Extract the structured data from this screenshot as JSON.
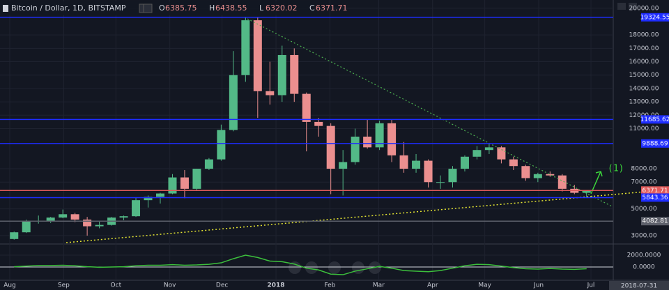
{
  "chart_data": {
    "type": "candlestick",
    "title": "Bitcoin / Dollar, 1D, BITSTAMP",
    "ohlc_header": {
      "labels": [
        "O",
        "H",
        "L",
        "C"
      ],
      "values": [
        6385.75,
        6438.55,
        6320.02,
        6371.71
      ]
    },
    "x": [
      "2017-07-31",
      "2017-08-07",
      "2017-08-14",
      "2017-08-21",
      "2017-08-28",
      "2017-09-04",
      "2017-09-11",
      "2017-09-18",
      "2017-09-25",
      "2017-10-02",
      "2017-10-09",
      "2017-10-16",
      "2017-10-23",
      "2017-10-30",
      "2017-11-06",
      "2017-11-13",
      "2017-11-20",
      "2017-11-27",
      "2017-12-04",
      "2017-12-11",
      "2017-12-18",
      "2017-12-25",
      "2018-01-01",
      "2018-01-08",
      "2018-01-15",
      "2018-01-22",
      "2018-01-29",
      "2018-02-05",
      "2018-02-12",
      "2018-02-19",
      "2018-02-26",
      "2018-03-05",
      "2018-03-12",
      "2018-03-19",
      "2018-03-26",
      "2018-04-02",
      "2018-04-09",
      "2018-04-16",
      "2018-04-23",
      "2018-04-30",
      "2018-05-07",
      "2018-05-14",
      "2018-05-21",
      "2018-05-28",
      "2018-06-04",
      "2018-06-11",
      "2018-06-18",
      "2018-06-25"
    ],
    "open": [
      2750,
      3250,
      4100,
      4100,
      4350,
      4600,
      4200,
      3700,
      3800,
      4350,
      4450,
      5650,
      5900,
      6150,
      7350,
      6500,
      8000,
      8700,
      10900,
      15000,
      19100,
      13800,
      13500,
      16500,
      13600,
      11500,
      11200,
      8000,
      8500,
      10400,
      9600,
      11400,
      9000,
      8000,
      8600,
      7000,
      7000,
      8000,
      8900,
      9400,
      9600,
      8700,
      8200,
      7300,
      7600,
      7500,
      6500,
      6200
    ],
    "high": [
      3300,
      4200,
      4500,
      4400,
      4950,
      4700,
      4400,
      4100,
      4400,
      4500,
      5850,
      6000,
      6200,
      7600,
      7900,
      8000,
      8800,
      11300,
      16800,
      19300,
      19324,
      16000,
      17200,
      17000,
      13700,
      11800,
      11400,
      9400,
      11000,
      11700,
      11600,
      11700,
      10000,
      9100,
      8700,
      7500,
      8200,
      9000,
      9700,
      9888,
      9700,
      8900,
      8300,
      7700,
      7800,
      7600,
      6800,
      6400
    ],
    "low": [
      2700,
      3200,
      3900,
      3950,
      4300,
      4000,
      3000,
      3550,
      3750,
      4150,
      4400,
      5100,
      5400,
      6100,
      5800,
      6400,
      7900,
      8600,
      10800,
      14500,
      11800,
      12800,
      13000,
      13000,
      9300,
      10400,
      6100,
      6000,
      8300,
      9500,
      9400,
      8500,
      7700,
      7700,
      6600,
      6500,
      6600,
      7800,
      8700,
      9100,
      8400,
      7900,
      7100,
      7000,
      7400,
      6300,
      6100,
      5843
    ],
    "close": [
      3250,
      4100,
      4100,
      4350,
      4600,
      4200,
      3700,
      3800,
      4350,
      4450,
      5650,
      5900,
      6150,
      7350,
      6500,
      8000,
      8700,
      10900,
      15000,
      19100,
      13800,
      13500,
      16500,
      13600,
      11500,
      11200,
      8000,
      8500,
      10400,
      9600,
      11400,
      9000,
      8000,
      8600,
      7000,
      7000,
      8000,
      8900,
      9400,
      9600,
      8700,
      8200,
      7300,
      7600,
      7500,
      6500,
      6200,
      6370
    ],
    "up_color": "#53b987",
    "down_color": "#eb8f8f",
    "ylim": [
      2479,
      20615
    ],
    "yticks": [
      {
        "value": 20000,
        "label": "20000.00"
      },
      {
        "value": 18000,
        "label": "18000.00"
      },
      {
        "value": 17000,
        "label": "17000.00"
      },
      {
        "value": 16000,
        "label": "16000.00"
      },
      {
        "value": 15000,
        "label": "15000.00"
      },
      {
        "value": 14000,
        "label": "14000.00"
      },
      {
        "value": 13000,
        "label": "13000.00"
      },
      {
        "value": 12000,
        "label": "12000.00"
      },
      {
        "value": 11000,
        "label": "11000.00"
      },
      {
        "value": 8000,
        "label": "8000.00"
      },
      {
        "value": 7000,
        "label": "7000.00"
      },
      {
        "value": 5000,
        "label": "5000.00"
      },
      {
        "value": 3000,
        "label": "3000.00"
      }
    ],
    "xticks": [
      {
        "value": "2017-08-01",
        "label": "Aug"
      },
      {
        "value": "2017-09-01",
        "label": "Sep"
      },
      {
        "value": "2017-10-01",
        "label": "Oct"
      },
      {
        "value": "2017-11-01",
        "label": "Nov"
      },
      {
        "value": "2017-12-01",
        "label": "Dec"
      },
      {
        "value": "2018-01-01",
        "label": "2018"
      },
      {
        "value": "2018-02-01",
        "label": "Feb"
      },
      {
        "value": "2018-03-01",
        "label": "Mar"
      },
      {
        "value": "2018-04-01",
        "label": "Apr"
      },
      {
        "value": "2018-05-01",
        "label": "May"
      },
      {
        "value": "2018-06-01",
        "label": "Jun"
      },
      {
        "value": "2018-07-01",
        "label": "Jul"
      }
    ],
    "cursor_date": "2018-07-31",
    "levels": [
      {
        "value": 19324.55,
        "color": "#1e2dff"
      },
      {
        "value": 11685.62,
        "color": "#1e2dff"
      },
      {
        "value": 9888.69,
        "color": "#1e2dff"
      },
      {
        "value": 6371.71,
        "color": "#e05a5a"
      },
      {
        "value": 5843.36,
        "color": "#1e2dff"
      },
      {
        "value": 4082.81,
        "color": "#5d606b"
      }
    ],
    "annotation": "(1)",
    "macd": {
      "ylim": [
        -2235,
        3882
      ],
      "yticks": [
        {
          "value": 2000,
          "label": "2000.0000"
        },
        {
          "value": 0,
          "label": "0.0000"
        }
      ],
      "color": "#3cbf3c",
      "values": [
        50,
        150,
        250,
        250,
        300,
        200,
        50,
        -50,
        0,
        50,
        200,
        300,
        300,
        400,
        300,
        350,
        450,
        700,
        1400,
        2000,
        1600,
        1000,
        900,
        500,
        -200,
        -500,
        -1200,
        -1300,
        -700,
        -300,
        100,
        -200,
        -600,
        -700,
        -800,
        -600,
        -200,
        200,
        450,
        400,
        150,
        -100,
        -300,
        -350,
        -250,
        -350,
        -400,
        -300
      ]
    }
  }
}
